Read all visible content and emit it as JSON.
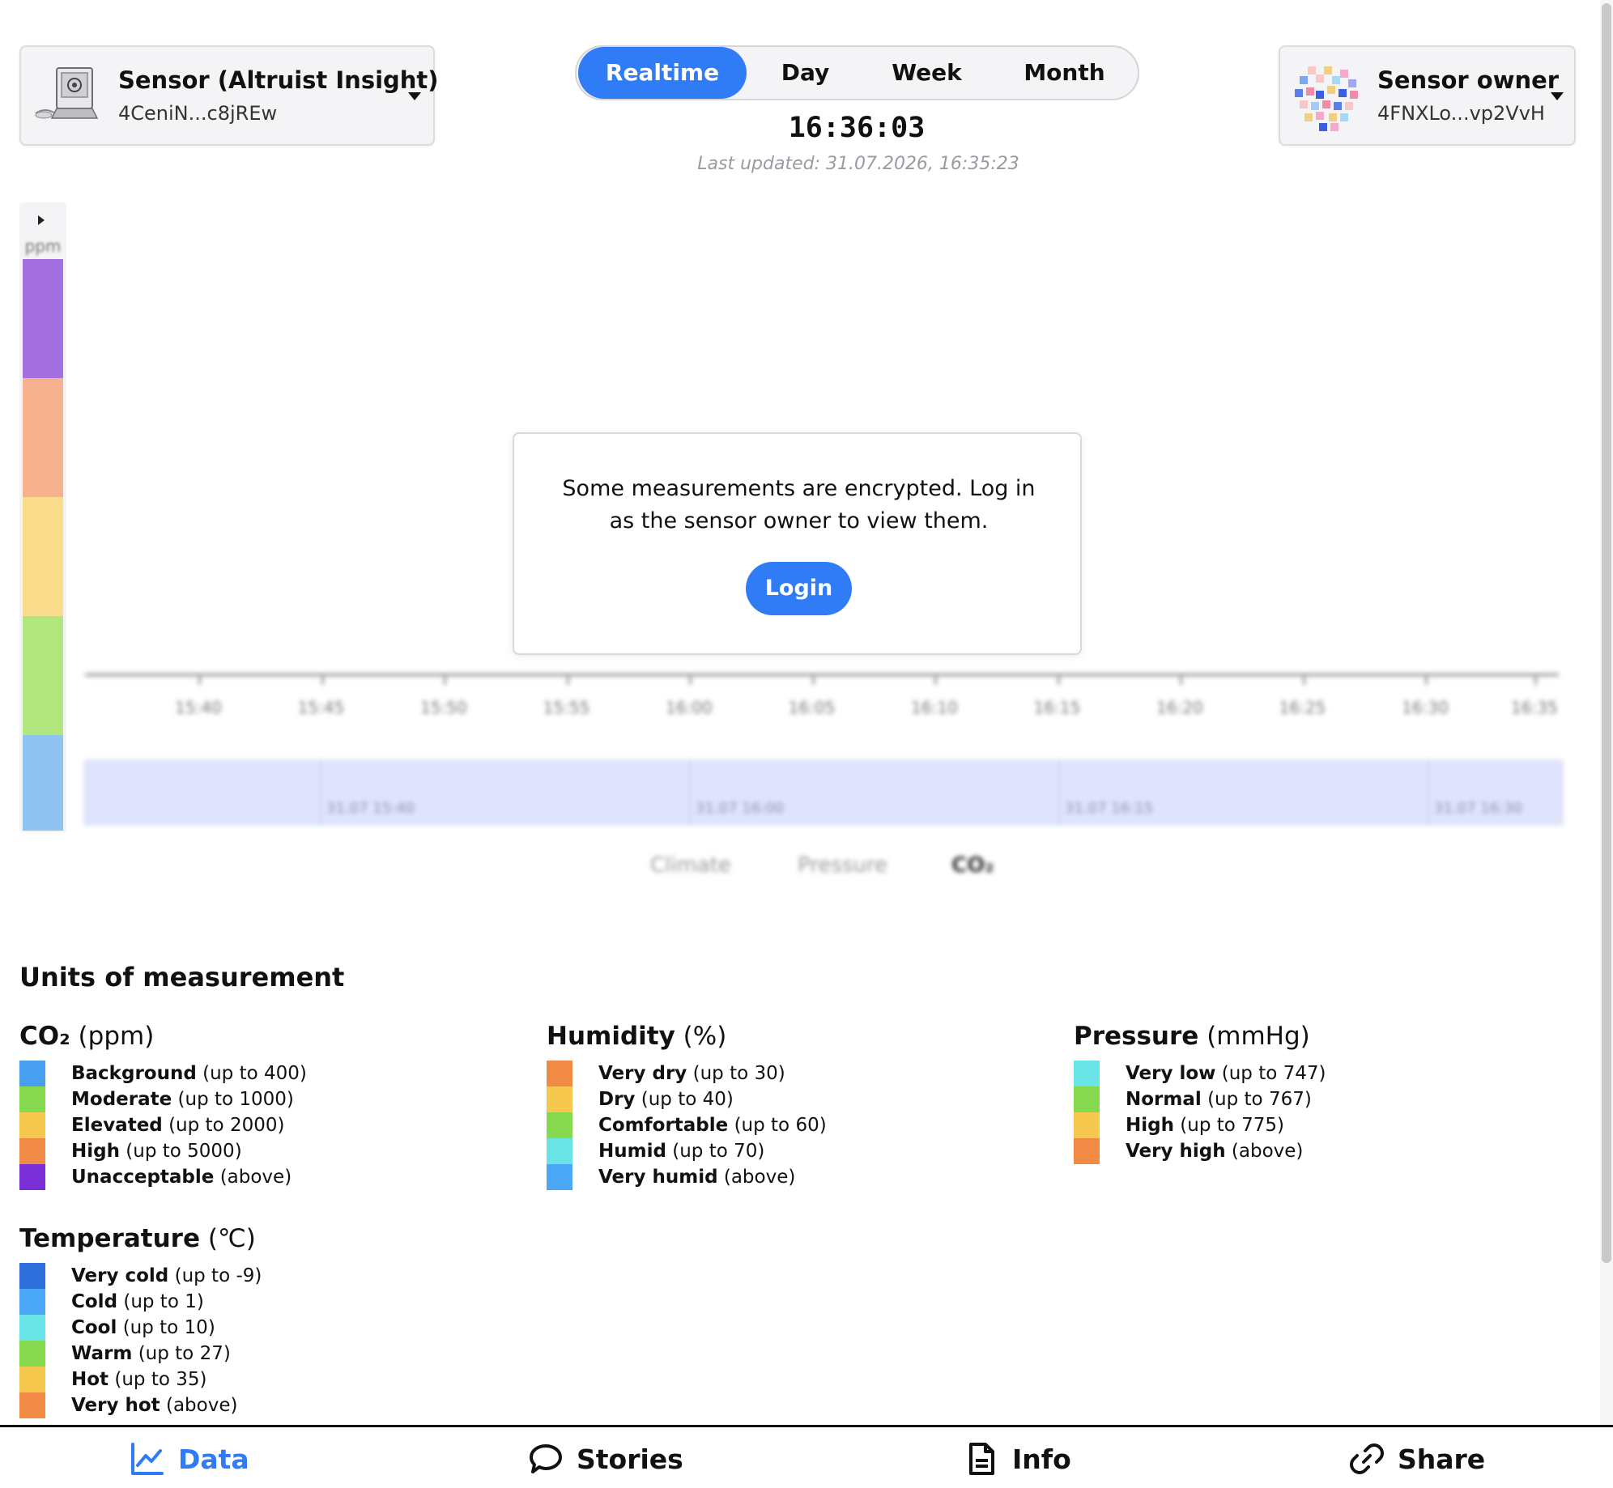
{
  "sensor": {
    "title": "Sensor (Altruist Insight)",
    "id": "4CeniN...c8jREw"
  },
  "owner": {
    "title": "Sensor owner",
    "id": "4FNXLo...vp2VvH"
  },
  "period_tabs": [
    {
      "label": "Realtime",
      "active": true
    },
    {
      "label": "Day",
      "active": false
    },
    {
      "label": "Week",
      "active": false
    },
    {
      "label": "Month",
      "active": false
    }
  ],
  "clock": "16:36:03",
  "last_updated": "Last updated: 31.07.2026, 16:35:23",
  "scale": {
    "unit": "ppm",
    "colors": [
      "#a46fdf",
      "#f6b28f",
      "#f9dc8c",
      "#b2e67f",
      "#8fc3f2"
    ]
  },
  "chart": {
    "time_ticks": [
      "15:40",
      "15:45",
      "15:50",
      "15:55",
      "16:00",
      "16:05",
      "16:10",
      "16:15",
      "16:20",
      "16:25",
      "16:30",
      "16:35"
    ],
    "navigator_labels": [
      "31.07 15:40",
      "31.07 16:00",
      "31.07 16:15",
      "31.07 16:30"
    ],
    "tabs": [
      "Climate",
      "Pressure",
      "CO₂"
    ],
    "active_tab": "CO₂"
  },
  "modal": {
    "message": "Some measurements are encrypted. Log in as the sensor owner to view them.",
    "button_label": "Login"
  },
  "legend": {
    "heading": "Units of measurement",
    "co2": {
      "name": "CO₂",
      "unit": "(ppm)",
      "items": [
        {
          "label": "Background",
          "range": "(up to 400)",
          "color": "#4aa0f0"
        },
        {
          "label": "Moderate",
          "range": "(up to 1000)",
          "color": "#86d94f"
        },
        {
          "label": "Elevated",
          "range": "(up to 2000)",
          "color": "#f6c84e"
        },
        {
          "label": "High",
          "range": "(up to 5000)",
          "color": "#f08a44"
        },
        {
          "label": "Unacceptable",
          "range": "(above)",
          "color": "#7a2fd6"
        }
      ]
    },
    "humidity": {
      "name": "Humidity",
      "unit": "(%)",
      "items": [
        {
          "label": "Very dry",
          "range": "(up to 30)",
          "color": "#f08a44"
        },
        {
          "label": "Dry",
          "range": "(up to 40)",
          "color": "#f6c84e"
        },
        {
          "label": "Comfortable",
          "range": "(up to 60)",
          "color": "#86d94f"
        },
        {
          "label": "Humid",
          "range": "(up to 70)",
          "color": "#68e3e6"
        },
        {
          "label": "Very humid",
          "range": "(above)",
          "color": "#4aa8f6"
        }
      ]
    },
    "pressure": {
      "name": "Pressure",
      "unit": "(mmHg)",
      "items": [
        {
          "label": "Very low",
          "range": "(up to 747)",
          "color": "#68e3e6"
        },
        {
          "label": "Normal",
          "range": "(up to 767)",
          "color": "#86d94f"
        },
        {
          "label": "High",
          "range": "(up to 775)",
          "color": "#f6c84e"
        },
        {
          "label": "Very high",
          "range": "(above)",
          "color": "#f08a44"
        }
      ]
    },
    "temperature": {
      "name": "Temperature",
      "unit": "(℃)",
      "items": [
        {
          "label": "Very cold",
          "range": "(up to -9)",
          "color": "#2f6fdc"
        },
        {
          "label": "Cold",
          "range": "(up to 1)",
          "color": "#4aa8f6"
        },
        {
          "label": "Cool",
          "range": "(up to 10)",
          "color": "#68e3e6"
        },
        {
          "label": "Warm",
          "range": "(up to 27)",
          "color": "#86d94f"
        },
        {
          "label": "Hot",
          "range": "(up to 35)",
          "color": "#f6c84e"
        },
        {
          "label": "Very hot",
          "range": "(above)",
          "color": "#f08a44"
        }
      ]
    }
  },
  "bottom_nav": [
    {
      "label": "Data",
      "icon": "chart-line-icon",
      "active": true
    },
    {
      "label": "Stories",
      "icon": "speech-bubble-icon",
      "active": false
    },
    {
      "label": "Info",
      "icon": "document-icon",
      "active": false
    },
    {
      "label": "Share",
      "icon": "link-icon",
      "active": false
    }
  ],
  "colors": {
    "accent": "#2f7cf6"
  }
}
